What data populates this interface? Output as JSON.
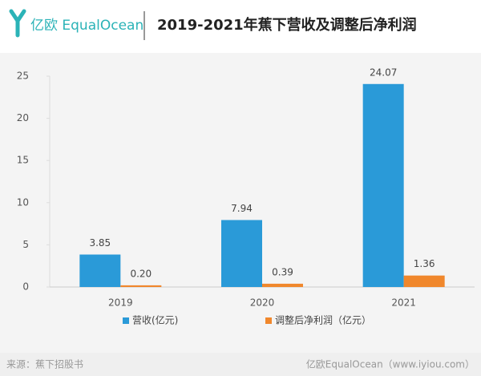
{
  "header": {
    "brand": "亿欧 EqualOcean"
  },
  "chart_data": {
    "type": "bar",
    "title": "2019-2021年蕉下营收及调整后净利润",
    "categories": [
      "2019",
      "2020",
      "2021"
    ],
    "series": [
      {
        "name": "营收(亿元)",
        "color": "#2a9ad8",
        "values": [
          3.85,
          7.94,
          24.07
        ]
      },
      {
        "name": "调整后净利润（亿元）",
        "color": "#f0872c",
        "values": [
          0.2,
          0.39,
          1.36
        ],
        "value_labels": [
          "0.20",
          "0.39",
          "1.36"
        ]
      }
    ],
    "ylim": [
      0,
      25
    ],
    "yticks": [
      0,
      5,
      10,
      15,
      20,
      25
    ],
    "grid": false,
    "legend": "bottom"
  },
  "footer": {
    "source": "来源：蕉下招股书",
    "credit": "亿欧EqualOcean（www.iyiou.com）"
  }
}
